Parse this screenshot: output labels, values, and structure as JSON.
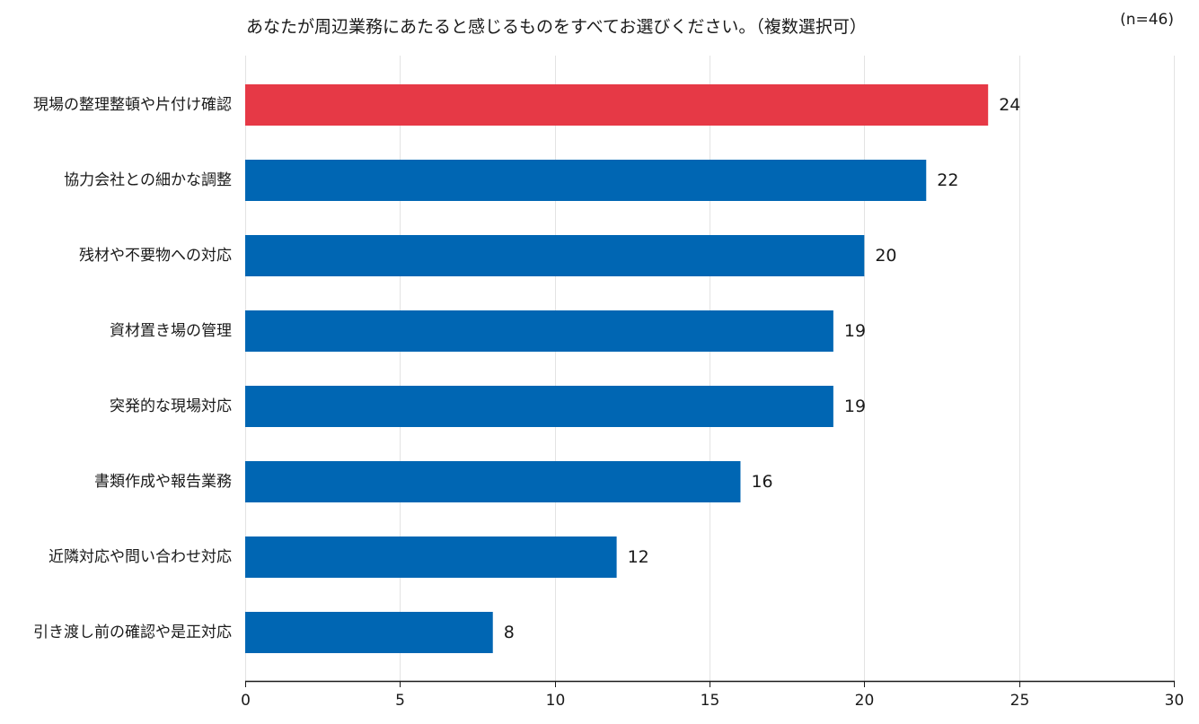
{
  "chart_data": {
    "type": "bar",
    "orientation": "horizontal",
    "title": "あなたが周辺業務にあたると感じるものをすべてお選びください。（複数選択可）",
    "note": "(n=46)",
    "categories": [
      "現場の整理整頓や片付け確認",
      "協力会社との細かな調整",
      "残材や不要物への対応",
      "資材置き場の管理",
      "突発的な現場対応",
      "書類作成や報告業務",
      "近隣対応や問い合わせ対応",
      "引き渡し前の確認や是正対応"
    ],
    "values": [
      24,
      22,
      20,
      19,
      19,
      16,
      12,
      8
    ],
    "xlim": [
      0,
      30
    ],
    "xticks": [
      0,
      5,
      10,
      15,
      20,
      25,
      30
    ],
    "xlabel": "",
    "ylabel": "",
    "grid": "vertical",
    "highlight_index": 0,
    "colors": {
      "highlight": "#e63946",
      "bar": "#0066b3",
      "grid": "#e3e3e3",
      "axis": "#1a1a1a"
    }
  }
}
